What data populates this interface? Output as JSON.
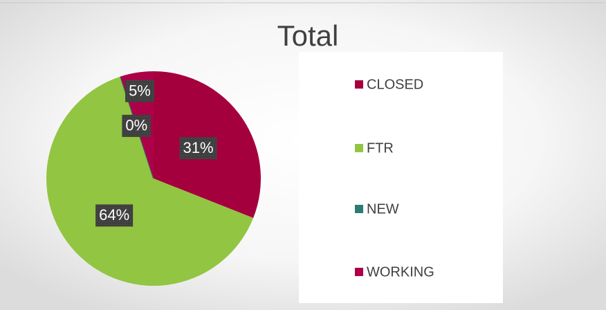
{
  "chart_data": {
    "type": "pie",
    "title": "Total",
    "categories": [
      "CLOSED",
      "FTR",
      "NEW",
      "WORKING"
    ],
    "values": [
      31,
      64,
      0,
      5
    ],
    "value_labels": [
      "31%",
      "64%",
      "0%",
      "5%"
    ],
    "colors": [
      "#a5003e",
      "#92c542",
      "#2a7d70",
      "#ad0048"
    ],
    "legend": "right"
  }
}
